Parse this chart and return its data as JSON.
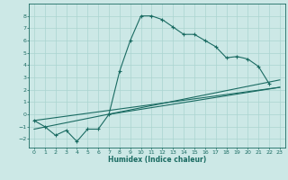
{
  "xlabel": "Humidex (Indice chaleur)",
  "bg_color": "#cce8e6",
  "grid_color": "#aad4d0",
  "line_color": "#1a6b62",
  "xlim": [
    -0.5,
    23.5
  ],
  "ylim": [
    -2.7,
    9.0
  ],
  "yticks": [
    -2,
    -1,
    0,
    1,
    2,
    3,
    4,
    5,
    6,
    7,
    8
  ],
  "xticks": [
    0,
    1,
    2,
    3,
    4,
    5,
    6,
    7,
    8,
    9,
    10,
    11,
    12,
    13,
    14,
    15,
    16,
    17,
    18,
    19,
    20,
    21,
    22,
    23
  ],
  "series": [
    [
      0,
      -0.5
    ],
    [
      1,
      -1.0
    ],
    [
      2,
      -1.7
    ],
    [
      3,
      -1.3
    ],
    [
      4,
      -2.2
    ],
    [
      5,
      -1.2
    ],
    [
      6,
      -1.2
    ],
    [
      7,
      0.0
    ],
    [
      8,
      3.5
    ],
    [
      9,
      6.0
    ],
    [
      10,
      8.0
    ],
    [
      11,
      8.0
    ],
    [
      12,
      7.7
    ],
    [
      13,
      7.1
    ],
    [
      14,
      6.5
    ],
    [
      15,
      6.5
    ],
    [
      16,
      6.0
    ],
    [
      17,
      5.5
    ],
    [
      18,
      4.6
    ],
    [
      19,
      4.7
    ],
    [
      20,
      4.5
    ],
    [
      21,
      3.9
    ],
    [
      22,
      2.5
    ]
  ],
  "linear1": [
    [
      0,
      -0.5
    ],
    [
      23,
      2.2
    ]
  ],
  "linear2": [
    [
      0,
      -1.2
    ],
    [
      23,
      2.8
    ]
  ],
  "linear3": [
    [
      7,
      0.0
    ],
    [
      23,
      2.2
    ]
  ]
}
